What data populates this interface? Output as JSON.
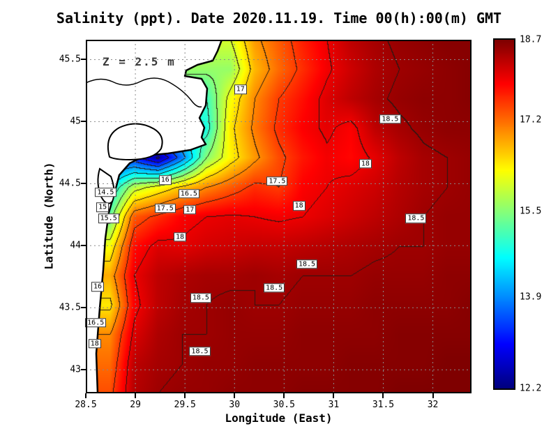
{
  "chart_data": {
    "type": "heatmap",
    "title": "Salinity (ppt). Date 2020.11.19. Time 00(h):00(m) GMT",
    "annotation": "Z = 2.5 m",
    "xlabel": "Longitude (East)",
    "ylabel": "Latitude (North)",
    "xlim": [
      28.5,
      32.39
    ],
    "ylim": [
      42.81,
      45.66
    ],
    "x_ticks": [
      28.5,
      29,
      29.5,
      30,
      30.5,
      31,
      31.5,
      32
    ],
    "y_ticks": [
      43,
      43.5,
      44,
      44.5,
      45,
      45.5
    ],
    "grid": true,
    "contour_interval": 0.5,
    "colorbar": {
      "min": 12.2,
      "max": 18.7,
      "ticks": [
        18.7,
        17.2,
        15.5,
        13.9,
        12.2
      ],
      "colormap_stops": [
        [
          0,
          "#00007f"
        ],
        [
          0.125,
          "#0000ff"
        ],
        [
          0.375,
          "#00ffff"
        ],
        [
          0.625,
          "#ffff00"
        ],
        [
          0.875,
          "#ff0000"
        ],
        [
          1,
          "#7f0000"
        ]
      ]
    },
    "contour_labels": [
      {
        "text": "17",
        "lon": 30.06,
        "lat": 45.26
      },
      {
        "text": "18.5",
        "lon": 31.57,
        "lat": 45.02
      },
      {
        "text": "18",
        "lon": 31.32,
        "lat": 44.66
      },
      {
        "text": "17.5",
        "lon": 30.43,
        "lat": 44.52
      },
      {
        "text": "18",
        "lon": 30.65,
        "lat": 44.32
      },
      {
        "text": "18.5",
        "lon": 31.83,
        "lat": 44.22
      },
      {
        "text": "16",
        "lon": 29.3,
        "lat": 44.53
      },
      {
        "text": "16.5",
        "lon": 29.54,
        "lat": 44.42
      },
      {
        "text": "14.5",
        "lon": 28.7,
        "lat": 44.43
      },
      {
        "text": "15",
        "lon": 28.67,
        "lat": 44.31
      },
      {
        "text": "15.5",
        "lon": 28.73,
        "lat": 44.22
      },
      {
        "text": "17.5",
        "lon": 29.3,
        "lat": 44.3
      },
      {
        "text": "17",
        "lon": 29.55,
        "lat": 44.29
      },
      {
        "text": "18",
        "lon": 29.45,
        "lat": 44.07
      },
      {
        "text": "18.5",
        "lon": 30.73,
        "lat": 43.85
      },
      {
        "text": "16",
        "lon": 28.62,
        "lat": 43.67
      },
      {
        "text": "18.5",
        "lon": 30.4,
        "lat": 43.66
      },
      {
        "text": "18.5",
        "lon": 29.66,
        "lat": 43.58
      },
      {
        "text": "16.5",
        "lon": 28.6,
        "lat": 43.38
      },
      {
        "text": "18",
        "lon": 28.59,
        "lat": 43.21
      },
      {
        "text": "18.5",
        "lon": 29.65,
        "lat": 43.15
      }
    ],
    "grid_field": {
      "units": "ppt",
      "order": "rows north to south, null = land",
      "lon0": 28.5,
      "dlon": 0.243125,
      "nx": 17,
      "lat0": 45.66,
      "dlat": 0.2375,
      "ny": 13,
      "values": [
        [
          null,
          null,
          null,
          null,
          null,
          null,
          16.0,
          16.9,
          17.3,
          17.7,
          18.0,
          18.3,
          18.45,
          18.55,
          18.6,
          18.65,
          18.65
        ],
        [
          null,
          null,
          null,
          null,
          null,
          null,
          15.6,
          16.7,
          17.2,
          17.6,
          17.95,
          18.2,
          18.4,
          18.5,
          18.55,
          18.6,
          18.65
        ],
        [
          null,
          null,
          null,
          null,
          null,
          15.0,
          16.2,
          17.0,
          17.5,
          17.8,
          18.1,
          18.3,
          18.45,
          18.55,
          18.6,
          18.6,
          18.65
        ],
        [
          null,
          null,
          null,
          null,
          null,
          14.8,
          16.4,
          17.1,
          17.6,
          17.9,
          18.05,
          17.9,
          18.3,
          18.45,
          18.55,
          18.6,
          18.6
        ],
        [
          null,
          null,
          13.2,
          12.4,
          13.8,
          15.5,
          16.3,
          16.9,
          17.4,
          17.75,
          17.95,
          17.85,
          18.05,
          18.3,
          18.45,
          18.5,
          18.55
        ],
        [
          null,
          14.5,
          15.8,
          16.2,
          16.6,
          17.0,
          17.3,
          17.6,
          17.5,
          17.9,
          18.0,
          18.1,
          18.2,
          18.35,
          18.45,
          18.5,
          18.55
        ],
        [
          null,
          15.3,
          17.3,
          17.6,
          17.9,
          18.0,
          18.05,
          18.0,
          17.95,
          18.0,
          18.1,
          18.2,
          18.3,
          18.4,
          18.5,
          18.55,
          18.55
        ],
        [
          null,
          16.2,
          17.8,
          18.1,
          18.05,
          18.15,
          18.2,
          18.25,
          18.25,
          18.3,
          18.35,
          18.4,
          18.45,
          18.5,
          18.5,
          18.55,
          18.55
        ],
        [
          null,
          16.8,
          18.0,
          18.3,
          18.4,
          18.45,
          18.45,
          18.5,
          18.45,
          18.5,
          18.5,
          18.5,
          18.55,
          18.55,
          18.55,
          18.6,
          18.6
        ],
        [
          null,
          16.4,
          17.9,
          18.3,
          18.45,
          18.5,
          18.55,
          18.5,
          18.5,
          18.55,
          18.55,
          18.55,
          18.6,
          18.6,
          18.6,
          18.6,
          18.65
        ],
        [
          null,
          17.0,
          18.1,
          18.4,
          18.5,
          18.5,
          18.55,
          18.55,
          18.55,
          18.6,
          18.6,
          18.6,
          18.6,
          18.65,
          18.65,
          18.65,
          18.65
        ],
        [
          null,
          17.2,
          18.3,
          18.45,
          18.5,
          18.55,
          18.55,
          18.6,
          18.6,
          18.6,
          18.6,
          18.65,
          18.65,
          18.65,
          18.65,
          18.7,
          18.7
        ],
        [
          null,
          17.4,
          18.35,
          18.5,
          18.55,
          18.55,
          18.6,
          18.6,
          18.6,
          18.65,
          18.65,
          18.65,
          18.65,
          18.7,
          18.7,
          18.7,
          18.7
        ]
      ]
    }
  }
}
